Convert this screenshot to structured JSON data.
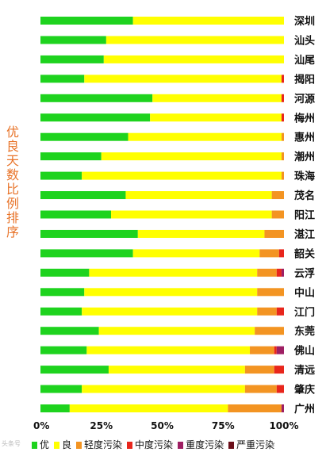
{
  "chart_data": {
    "type": "bar",
    "orientation": "horizontal",
    "stacked": true,
    "title": "",
    "ylabel": "优良天数比例排序",
    "xlabel": "",
    "xlim": [
      0,
      100
    ],
    "xticks": [
      "0%",
      "25%",
      "50%",
      "75%",
      "100%"
    ],
    "categories": [
      "深圳",
      "汕头",
      "汕尾",
      "揭阳",
      "河源",
      "梅州",
      "惠州",
      "潮州",
      "珠海",
      "茂名",
      "阳江",
      "湛江",
      "韶关",
      "云浮",
      "中山",
      "江门",
      "东莞",
      "佛山",
      "清远",
      "肇庆",
      "广州"
    ],
    "series": [
      {
        "name": "优",
        "color": "#1ed31e",
        "values": [
          38,
          27,
          26,
          18,
          46,
          45,
          36,
          25,
          17,
          35,
          29,
          40,
          38,
          20,
          18,
          17,
          24,
          19,
          28,
          17,
          12
        ]
      },
      {
        "name": "良",
        "color": "#ffff00",
        "values": [
          62,
          73,
          74,
          81,
          53,
          54,
          63,
          74,
          82,
          60,
          66,
          52,
          52,
          69,
          71,
          72,
          64,
          67,
          56,
          67,
          65
        ]
      },
      {
        "name": "轻度污染",
        "color": "#f39422",
        "values": [
          0,
          0,
          0,
          0,
          0,
          0,
          1,
          1,
          1,
          5,
          5,
          8,
          8,
          8,
          11,
          8,
          12,
          10,
          12,
          13,
          22
        ]
      },
      {
        "name": "中度污染",
        "color": "#e8261c",
        "values": [
          0,
          0,
          0,
          1,
          1,
          1,
          0,
          0,
          0,
          0,
          0,
          0,
          2,
          2,
          0,
          3,
          0,
          1,
          4,
          3,
          0
        ]
      },
      {
        "name": "重度污染",
        "color": "#9e1f63",
        "values": [
          0,
          0,
          0,
          0,
          0,
          0,
          0,
          0,
          0,
          0,
          0,
          0,
          0,
          1,
          0,
          0,
          0,
          3,
          0,
          0,
          1
        ]
      },
      {
        "name": "严重污染",
        "color": "#6b0f1a",
        "values": [
          0,
          0,
          0,
          0,
          0,
          0,
          0,
          0,
          0,
          0,
          0,
          0,
          0,
          0,
          0,
          0,
          0,
          0,
          0,
          0,
          0
        ]
      }
    ],
    "legend_position": "bottom",
    "grid": false
  },
  "watermark": "头条号"
}
